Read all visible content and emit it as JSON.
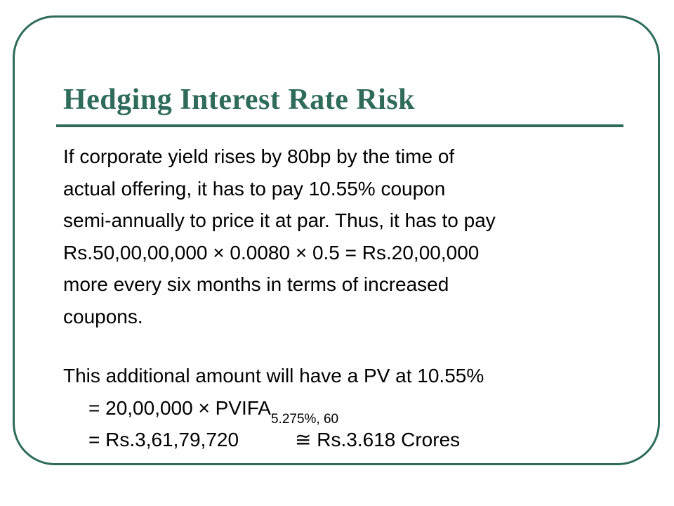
{
  "title": "Hedging Interest Rate Risk",
  "paragraph1": [
    "If corporate yield rises by 80bp by the time of",
    "actual offering, it has to pay 10.55% coupon",
    "semi-annually to price it at par. Thus, it has to pay",
    "Rs.50,00,00,000 × 0.0080 × 0.5 = Rs.20,00,000",
    "more every six months in terms of increased",
    "coupons."
  ],
  "paragraph2": {
    "intro": "This additional amount will have a PV at 10.55%",
    "eq1_main": "= 20,00,000 × PVIFA",
    "eq1_subscript": "5.275%, 60",
    "eq2_left": "= Rs.3,61,79,720",
    "eq2_right": "≅ Rs.3.618 Crores"
  },
  "colors": {
    "accent": "#2e6b5a",
    "text": "#000000",
    "background": "#ffffff"
  }
}
